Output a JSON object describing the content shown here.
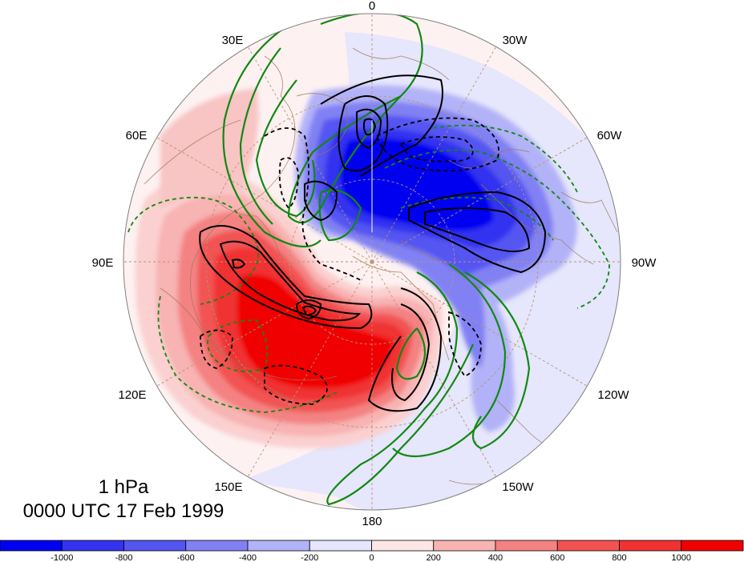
{
  "title": {
    "level": "1 hPa",
    "datetime": "0000 UTC 17 Feb 1999"
  },
  "longitude_labels": [
    "0",
    "30W",
    "60W",
    "90W",
    "120W",
    "150W",
    "180",
    "150E",
    "120E",
    "90E",
    "60E",
    "30E"
  ],
  "colorbar": {
    "ticks": [
      "-1000",
      "-800",
      "-600",
      "-400",
      "-200",
      "0",
      "200",
      "400",
      "600",
      "800",
      "1000"
    ],
    "colors": [
      "#0000f0",
      "#3333f0",
      "#5555f2",
      "#8181f4",
      "#b2b2f8",
      "#e6e6fc",
      "#fde6e6",
      "#f8b3b3",
      "#f48282",
      "#f25252",
      "#f03232",
      "#f00000"
    ]
  }
}
